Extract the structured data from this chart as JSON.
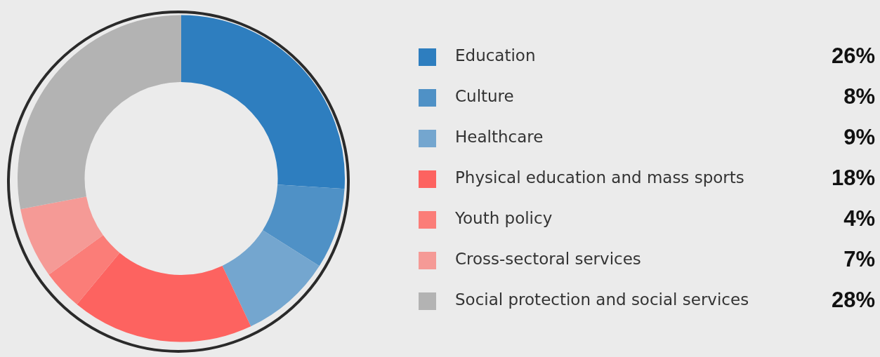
{
  "chart_data": {
    "type": "donut",
    "categories": [
      "Education",
      "Culture",
      "Healthcare",
      "Physical education and mass sports",
      "Youth policy",
      "Cross-sectoral services",
      "Social protection and social services"
    ],
    "values": [
      26,
      8,
      9,
      18,
      4,
      7,
      28
    ],
    "colors": [
      "#2e7ebf",
      "#4f91c6",
      "#74a6cf",
      "#fd6360",
      "#fb7d78",
      "#f59a96",
      "#b3b3b3"
    ],
    "value_labels": [
      "26%",
      "8%",
      "9%",
      "18%",
      "4%",
      "7%",
      "28%"
    ],
    "legend": "right"
  }
}
